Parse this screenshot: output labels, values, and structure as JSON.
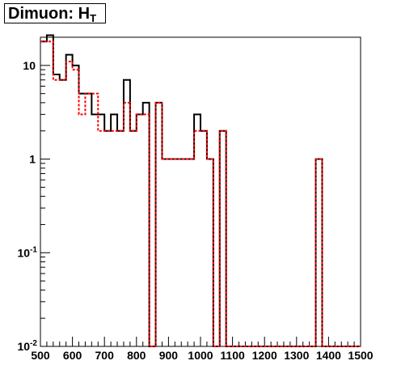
{
  "title": {
    "main": "Dimuon: H",
    "subscript": "T"
  },
  "chart_data": {
    "type": "histogram",
    "title": "Dimuon: H_T",
    "xlabel": "",
    "ylabel": "",
    "xlim": [
      500,
      1500
    ],
    "ylim": [
      0.01,
      20
    ],
    "yscale": "log",
    "grid": false,
    "x_ticks": [
      "500",
      "600",
      "700",
      "800",
      "900",
      "1000",
      "1100",
      "1200",
      "1300",
      "1400",
      "1500"
    ],
    "y_ticks": [
      {
        "value": 0.01,
        "base": "10",
        "exp": "-2"
      },
      {
        "value": 0.1,
        "base": "10",
        "exp": "-1"
      },
      {
        "value": 1,
        "base": "1",
        "exp": ""
      },
      {
        "value": 10,
        "base": "10",
        "exp": ""
      }
    ],
    "bin_edges": [
      500,
      520,
      540,
      560,
      580,
      600,
      620,
      640,
      660,
      680,
      700,
      720,
      740,
      760,
      780,
      800,
      820,
      840,
      860,
      880,
      900,
      920,
      940,
      960,
      980,
      1000,
      1020,
      1040,
      1060,
      1080,
      1100,
      1120,
      1140,
      1160,
      1180,
      1200,
      1220,
      1240,
      1260,
      1280,
      1300,
      1320,
      1340,
      1360,
      1380,
      1400,
      1420,
      1440,
      1460,
      1480,
      1500
    ],
    "series": [
      {
        "color": "#000000",
        "style": "solid",
        "values": [
          18,
          21,
          8,
          7,
          13,
          10,
          5,
          5,
          3,
          3,
          2,
          3,
          2,
          7,
          2,
          3,
          4,
          0,
          4,
          1,
          1,
          1,
          1,
          1,
          3,
          2,
          1,
          0,
          2,
          0,
          0,
          0,
          0,
          0,
          0,
          0,
          0,
          0,
          0,
          0,
          0,
          0,
          0,
          1,
          0,
          0,
          0,
          0,
          0,
          0
        ]
      },
      {
        "color": "#ff0000",
        "style": "dashed",
        "values": [
          18,
          18,
          7,
          7,
          11,
          9,
          3,
          5,
          5,
          2,
          2,
          2,
          2,
          4,
          2,
          3,
          3,
          0,
          4,
          1,
          1,
          1,
          1,
          1,
          2,
          2,
          1,
          0,
          2,
          0,
          0,
          0,
          0,
          0,
          0,
          0,
          0,
          0,
          0,
          0,
          0,
          0,
          0,
          1,
          0,
          0,
          0,
          0,
          0,
          0
        ]
      }
    ]
  }
}
